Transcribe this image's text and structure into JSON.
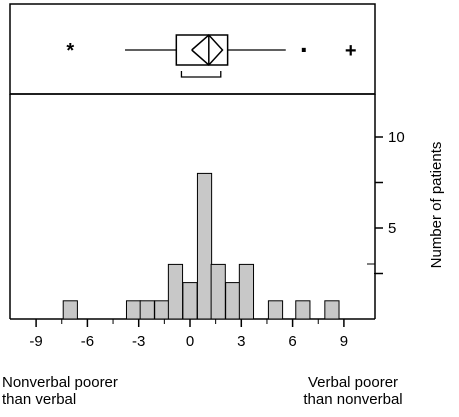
{
  "chart_data": {
    "type": "bar",
    "x_axis": {
      "min": -10,
      "max": 10,
      "ticks": [
        -9,
        -6,
        -3,
        0,
        3,
        6,
        9
      ]
    },
    "y_axis": {
      "label": "Number of patients",
      "min": 0,
      "max": 12,
      "ticks": [
        5,
        10
      ],
      "side": "right"
    },
    "bin_width": 0.83,
    "bars": [
      {
        "x": -7.0,
        "value": 1
      },
      {
        "x": -3.3,
        "value": 1
      },
      {
        "x": -2.5,
        "value": 1
      },
      {
        "x": -1.65,
        "value": 1
      },
      {
        "x": -0.85,
        "value": 3
      },
      {
        "x": 0.0,
        "value": 2
      },
      {
        "x": 0.85,
        "value": 8
      },
      {
        "x": 1.65,
        "value": 3
      },
      {
        "x": 2.5,
        "value": 2
      },
      {
        "x": 3.3,
        "value": 3
      },
      {
        "x": 5.0,
        "value": 1
      },
      {
        "x": 6.6,
        "value": 1
      },
      {
        "x": 8.3,
        "value": 1
      }
    ],
    "boxplot": {
      "whisker_low": -3.8,
      "q1": -0.8,
      "median": 1.1,
      "q3": 2.2,
      "whisker_high": 5.6,
      "notch_low": 0.1,
      "notch_high": 1.9,
      "ci_low": -0.5,
      "ci_high": 1.8,
      "outliers": [
        {
          "x": -7.0,
          "symbol": "*"
        },
        {
          "x": 6.7,
          "symbol": "·"
        },
        {
          "x": 9.4,
          "symbol": "+"
        }
      ]
    },
    "x_captions": {
      "left": [
        "Nonverbal poorer",
        "than verbal"
      ],
      "right": [
        "Verbal poorer",
        "than nonverbal"
      ]
    },
    "colors": {
      "bar_fill": "#c8c8c8",
      "ink": "#000000"
    }
  }
}
